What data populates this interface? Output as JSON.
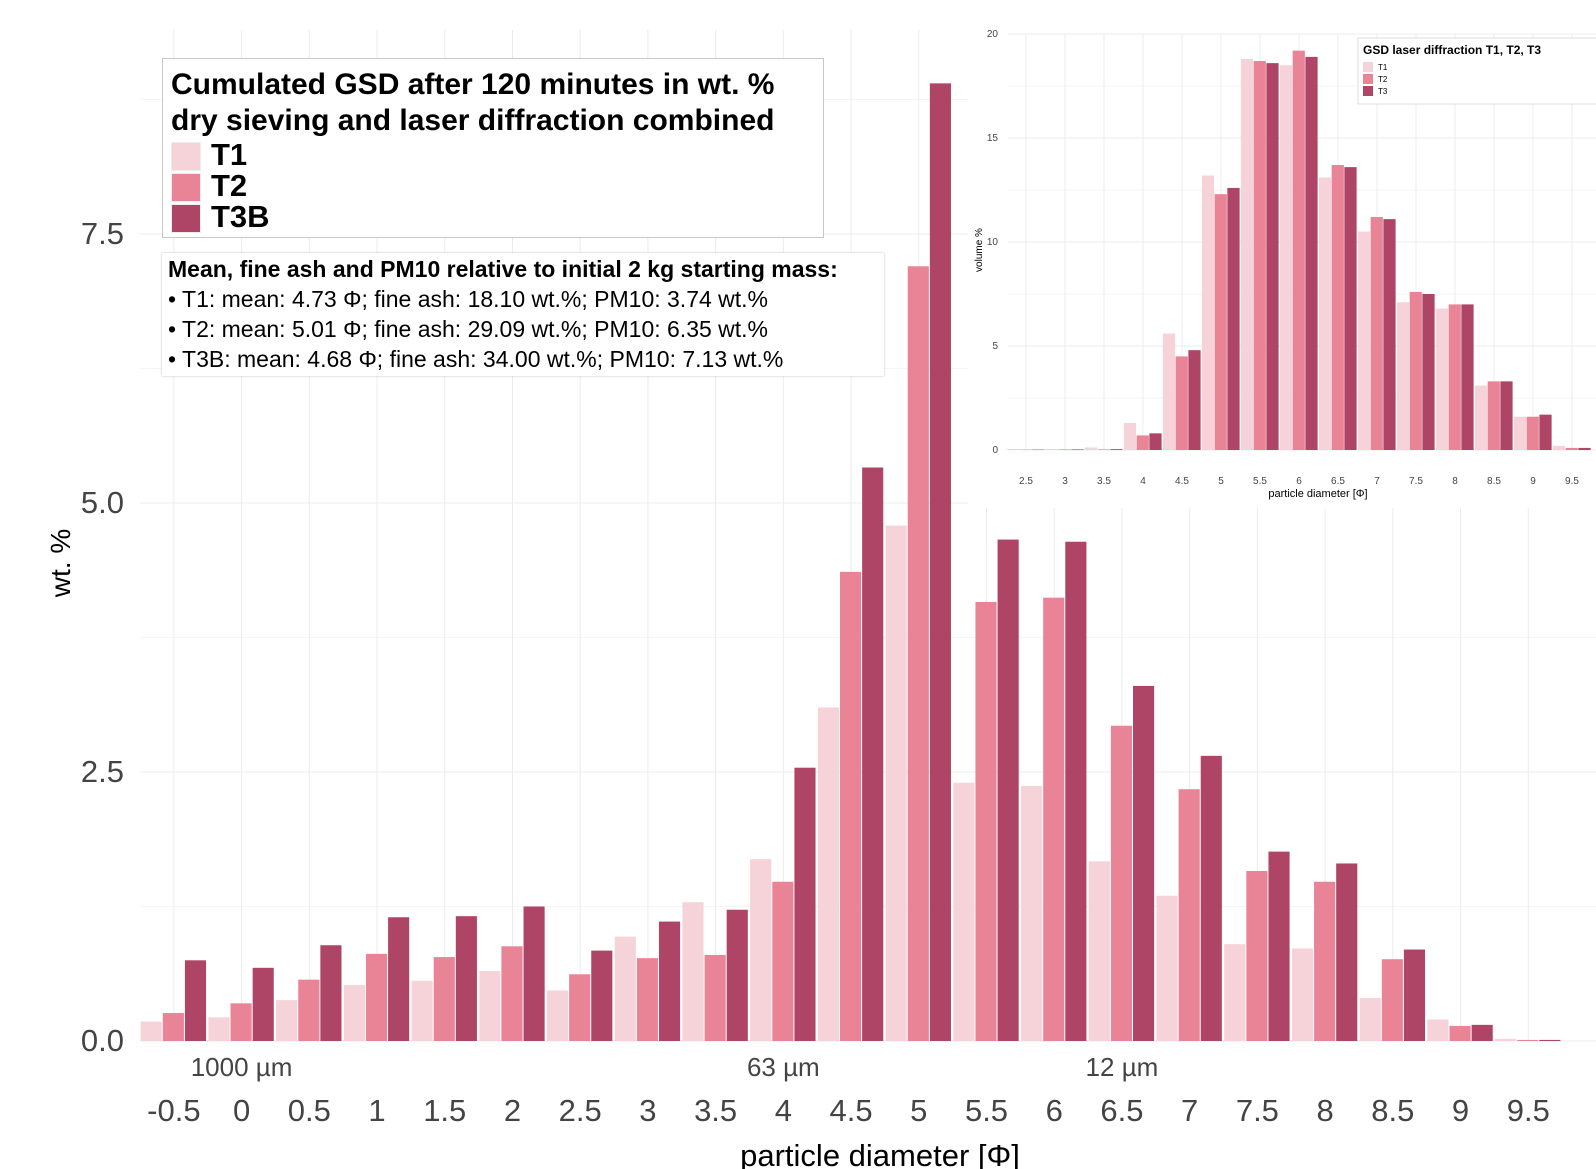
{
  "chart_data": [
    {
      "type": "bar",
      "title": "Cumulated GSD after 120 minutes in wt. %\ndry sieving and laser diffraction combined",
      "xlabel": "particle diameter [Φ]",
      "ylabel": "wt. %",
      "ylim": [
        0,
        9.3
      ],
      "yticks": [
        "0.0",
        "2.5",
        "5.0",
        "7.5"
      ],
      "categories": [
        "-0.5",
        "0",
        "0.5",
        "1",
        "1.5",
        "2",
        "2.5",
        "3",
        "3.5",
        "4",
        "4.5",
        "5",
        "5.5",
        "6",
        "6.5",
        "7",
        "7.5",
        "8",
        "8.5",
        "9",
        "9.5"
      ],
      "series": [
        {
          "name": "T1",
          "color": "#f5d3d8",
          "values": [
            0.18,
            0.22,
            0.38,
            0.52,
            0.56,
            0.65,
            0.47,
            0.97,
            1.29,
            1.69,
            3.1,
            4.79,
            2.4,
            2.37,
            1.67,
            1.35,
            0.9,
            0.86,
            0.4,
            0.2,
            0.02
          ]
        },
        {
          "name": "T2",
          "color": "#e98396",
          "values": [
            0.26,
            0.35,
            0.57,
            0.81,
            0.78,
            0.88,
            0.62,
            0.77,
            0.8,
            1.48,
            4.36,
            7.2,
            4.08,
            4.12,
            2.93,
            2.34,
            1.58,
            1.48,
            0.76,
            0.14,
            0.01
          ]
        },
        {
          "name": "T3B",
          "color": "#ae4466",
          "values": [
            0.75,
            0.68,
            0.89,
            1.15,
            1.16,
            1.25,
            0.84,
            1.11,
            1.22,
            2.54,
            5.33,
            8.9,
            4.66,
            4.64,
            3.3,
            2.65,
            1.76,
            1.65,
            0.85,
            0.15,
            0.01
          ]
        }
      ],
      "size_annotations": [
        {
          "label": "1000 µm",
          "at": "0"
        },
        {
          "label": "63 µm",
          "at": "4"
        },
        {
          "label": "12 µm",
          "at": "6.5"
        }
      ],
      "grid": true,
      "legend": "top-left",
      "annotation": {
        "title": "Mean, fine ash and PM10 relative to initial 2 kg starting mass:",
        "lines": [
          "• T1: mean: 4.73 Φ; fine ash: 18.10 wt.%; PM10: 3.74 wt.%",
          "• T2: mean: 5.01 Φ; fine ash: 29.09 wt.%; PM10: 6.35 wt.%",
          "• T3B: mean: 4.68 Φ; fine ash: 34.00 wt.%; PM10: 7.13 wt.%"
        ]
      }
    },
    {
      "type": "bar",
      "title": "GSD laser diffraction T1, T2, T3",
      "xlabel": "particle diameter [Φ]",
      "ylabel": "volume %",
      "ylim": [
        0,
        20
      ],
      "yticks": [
        "0",
        "5",
        "10",
        "15",
        "20"
      ],
      "categories": [
        "2.5",
        "3",
        "3.5",
        "4",
        "4.5",
        "5",
        "5.5",
        "6",
        "6.5",
        "7",
        "7.5",
        "8",
        "8.5",
        "9",
        "9.5"
      ],
      "series": [
        {
          "name": "T1",
          "color": "#f5d3d8",
          "values": [
            0.05,
            0.05,
            0.12,
            1.3,
            5.6,
            13.2,
            18.8,
            18.5,
            13.1,
            10.5,
            7.1,
            6.8,
            3.1,
            1.6,
            0.2
          ]
        },
        {
          "name": "T2",
          "color": "#e98396",
          "values": [
            0.02,
            0.03,
            0.03,
            0.7,
            4.5,
            12.3,
            18.7,
            19.2,
            13.7,
            11.2,
            7.6,
            7.0,
            3.3,
            1.6,
            0.1
          ]
        },
        {
          "name": "T3",
          "color": "#ae4466",
          "values": [
            0.02,
            0.03,
            0.04,
            0.8,
            4.8,
            12.6,
            18.6,
            18.9,
            13.6,
            11.1,
            7.5,
            7.0,
            3.3,
            1.7,
            0.1
          ]
        }
      ],
      "grid": true,
      "legend": "top-right"
    }
  ]
}
